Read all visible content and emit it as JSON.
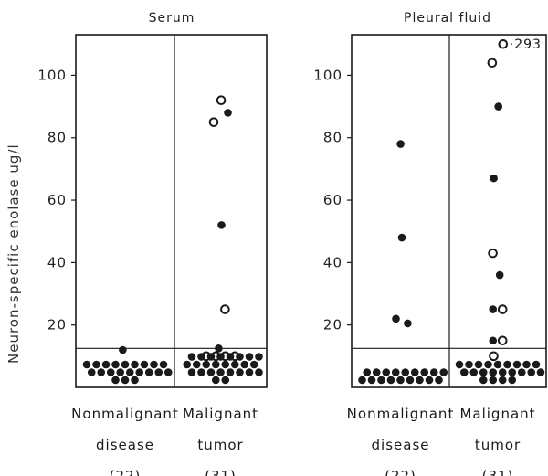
{
  "y_axis_label": "Neuron-specific enolase ug/l",
  "chart_data": [
    {
      "type": "scatter",
      "title": "Serum",
      "ylabel": "Neuron-specific enolase ug/l",
      "ylim": [
        0,
        113
      ],
      "yticks": [
        20,
        40,
        60,
        80,
        100
      ],
      "cutoff": 12.5,
      "grid": false,
      "categories": [
        {
          "label_lines": [
            "Nonmalignant",
            "disease",
            "(22)"
          ],
          "n": 22
        },
        {
          "label_lines": [
            "Malignant",
            "tumor",
            "(31)"
          ],
          "n": 31
        }
      ],
      "series": [
        {
          "name": "filled",
          "points": [
            {
              "category": 0,
              "y": 12
            },
            {
              "category": 1,
              "y": 88
            },
            {
              "category": 1,
              "y": 52
            },
            {
              "category": 1,
              "y": 12.5
            }
          ]
        },
        {
          "name": "open",
          "points": [
            {
              "category": 1,
              "y": 92
            },
            {
              "category": 1,
              "y": 85
            },
            {
              "category": 1,
              "y": 25
            },
            {
              "category": 1,
              "y": 10
            },
            {
              "category": 1,
              "y": 10
            },
            {
              "category": 1,
              "y": 10
            },
            {
              "category": 1,
              "y": 10
            }
          ]
        }
      ],
      "below_cutoff_filled_counts": [
        21,
        26
      ]
    },
    {
      "type": "scatter",
      "title": "Pleural fluid",
      "ylim": [
        0,
        113
      ],
      "yticks": [
        20,
        40,
        60,
        80,
        100
      ],
      "cutoff": 12.5,
      "grid": false,
      "categories": [
        {
          "label_lines": [
            "Nonmalignant",
            "disease",
            "(22)"
          ],
          "n": 22
        },
        {
          "label_lines": [
            "Malignant",
            "tumor",
            "(31)"
          ],
          "n": 31
        }
      ],
      "series": [
        {
          "name": "filled",
          "points": [
            {
              "category": 0,
              "y": 78
            },
            {
              "category": 0,
              "y": 48
            },
            {
              "category": 0,
              "y": 22
            },
            {
              "category": 0,
              "y": 20.5
            },
            {
              "category": 1,
              "y": 90
            },
            {
              "category": 1,
              "y": 67
            },
            {
              "category": 1,
              "y": 36
            },
            {
              "category": 1,
              "y": 25
            },
            {
              "category": 1,
              "y": 15
            }
          ]
        },
        {
          "name": "open",
          "points": [
            {
              "category": 1,
              "y": 110,
              "label": "·293"
            },
            {
              "category": 1,
              "y": 104
            },
            {
              "category": 1,
              "y": 43
            },
            {
              "category": 1,
              "y": 25
            },
            {
              "category": 1,
              "y": 15
            },
            {
              "category": 1,
              "y": 10
            }
          ]
        }
      ],
      "below_cutoff_filled_counts": [
        18,
        22
      ]
    }
  ]
}
